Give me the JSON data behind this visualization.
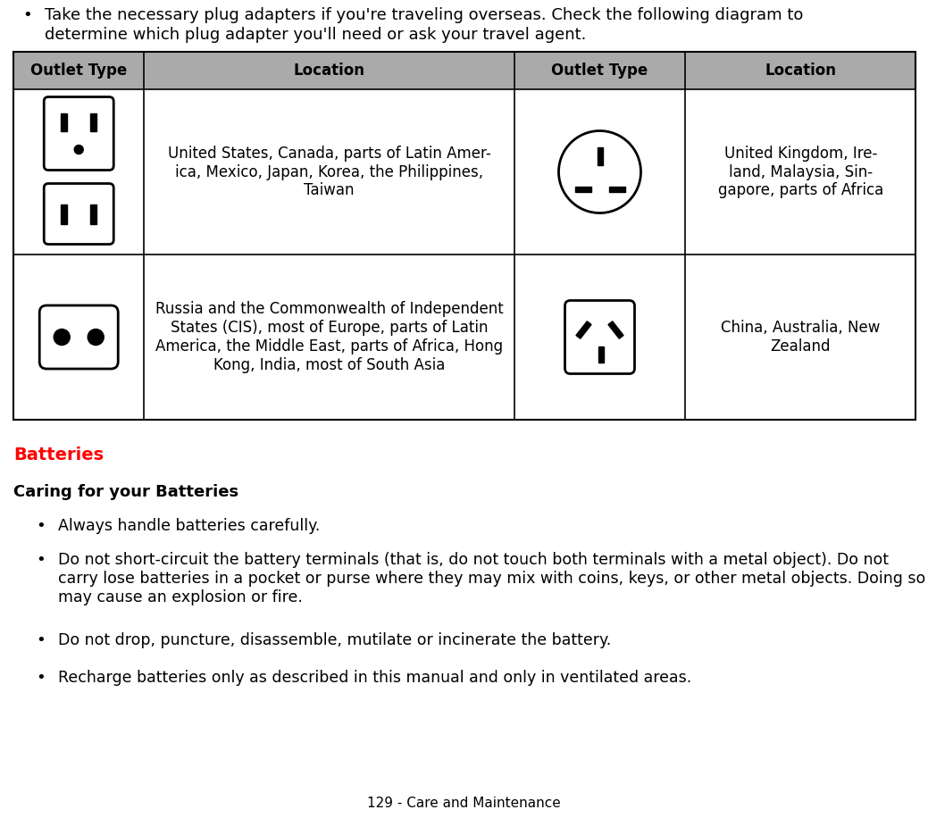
{
  "bg_color": "#ffffff",
  "bullet_text_intro_line1": "Take the necessary plug adapters if you're traveling overseas. Check the following diagram to",
  "bullet_text_intro_line2": "determine which plug adapter you'll need or ask your travel agent.",
  "table_header_bg": "#aaaaaa",
  "table_header_text_color": "#000000",
  "table_border_color": "#000000",
  "table_headers": [
    "Outlet Type",
    "Location",
    "Outlet Type",
    "Location"
  ],
  "row1_loc1": "United States, Canada, parts of Latin Amer-\nica, Mexico, Japan, Korea, the Philippines,\nTaiwan",
  "row1_loc2": "United Kingdom, Ire-\nland, Malaysia, Sin-\ngapore, parts of Africa",
  "row2_loc1": "Russia and the Commonwealth of Independent\nStates (CIS), most of Europe, parts of Latin\nAmerica, the Middle East, parts of Africa, Hong\nKong, India, most of South Asia",
  "row2_loc2": "China, Australia, New\nZealand",
  "batteries_title": "Batteries",
  "batteries_title_color": "#ff0000",
  "subtitle": "Caring for your Batteries",
  "bullet1": "Always handle batteries carefully.",
  "bullet2": "Do not short-circuit the battery terminals (that is, do not touch both terminals with a metal object). Do not carry lose batteries in a pocket or purse where they may mix with coins, keys, or other metal objects. Doing so may cause an explosion or fire.",
  "bullet3": "Do not drop, puncture, disassemble, mutilate or incinerate the battery.",
  "bullet4": "Recharge batteries only as described in this manual and only in ventilated areas.",
  "footer_text": "129 - Care and Maintenance"
}
